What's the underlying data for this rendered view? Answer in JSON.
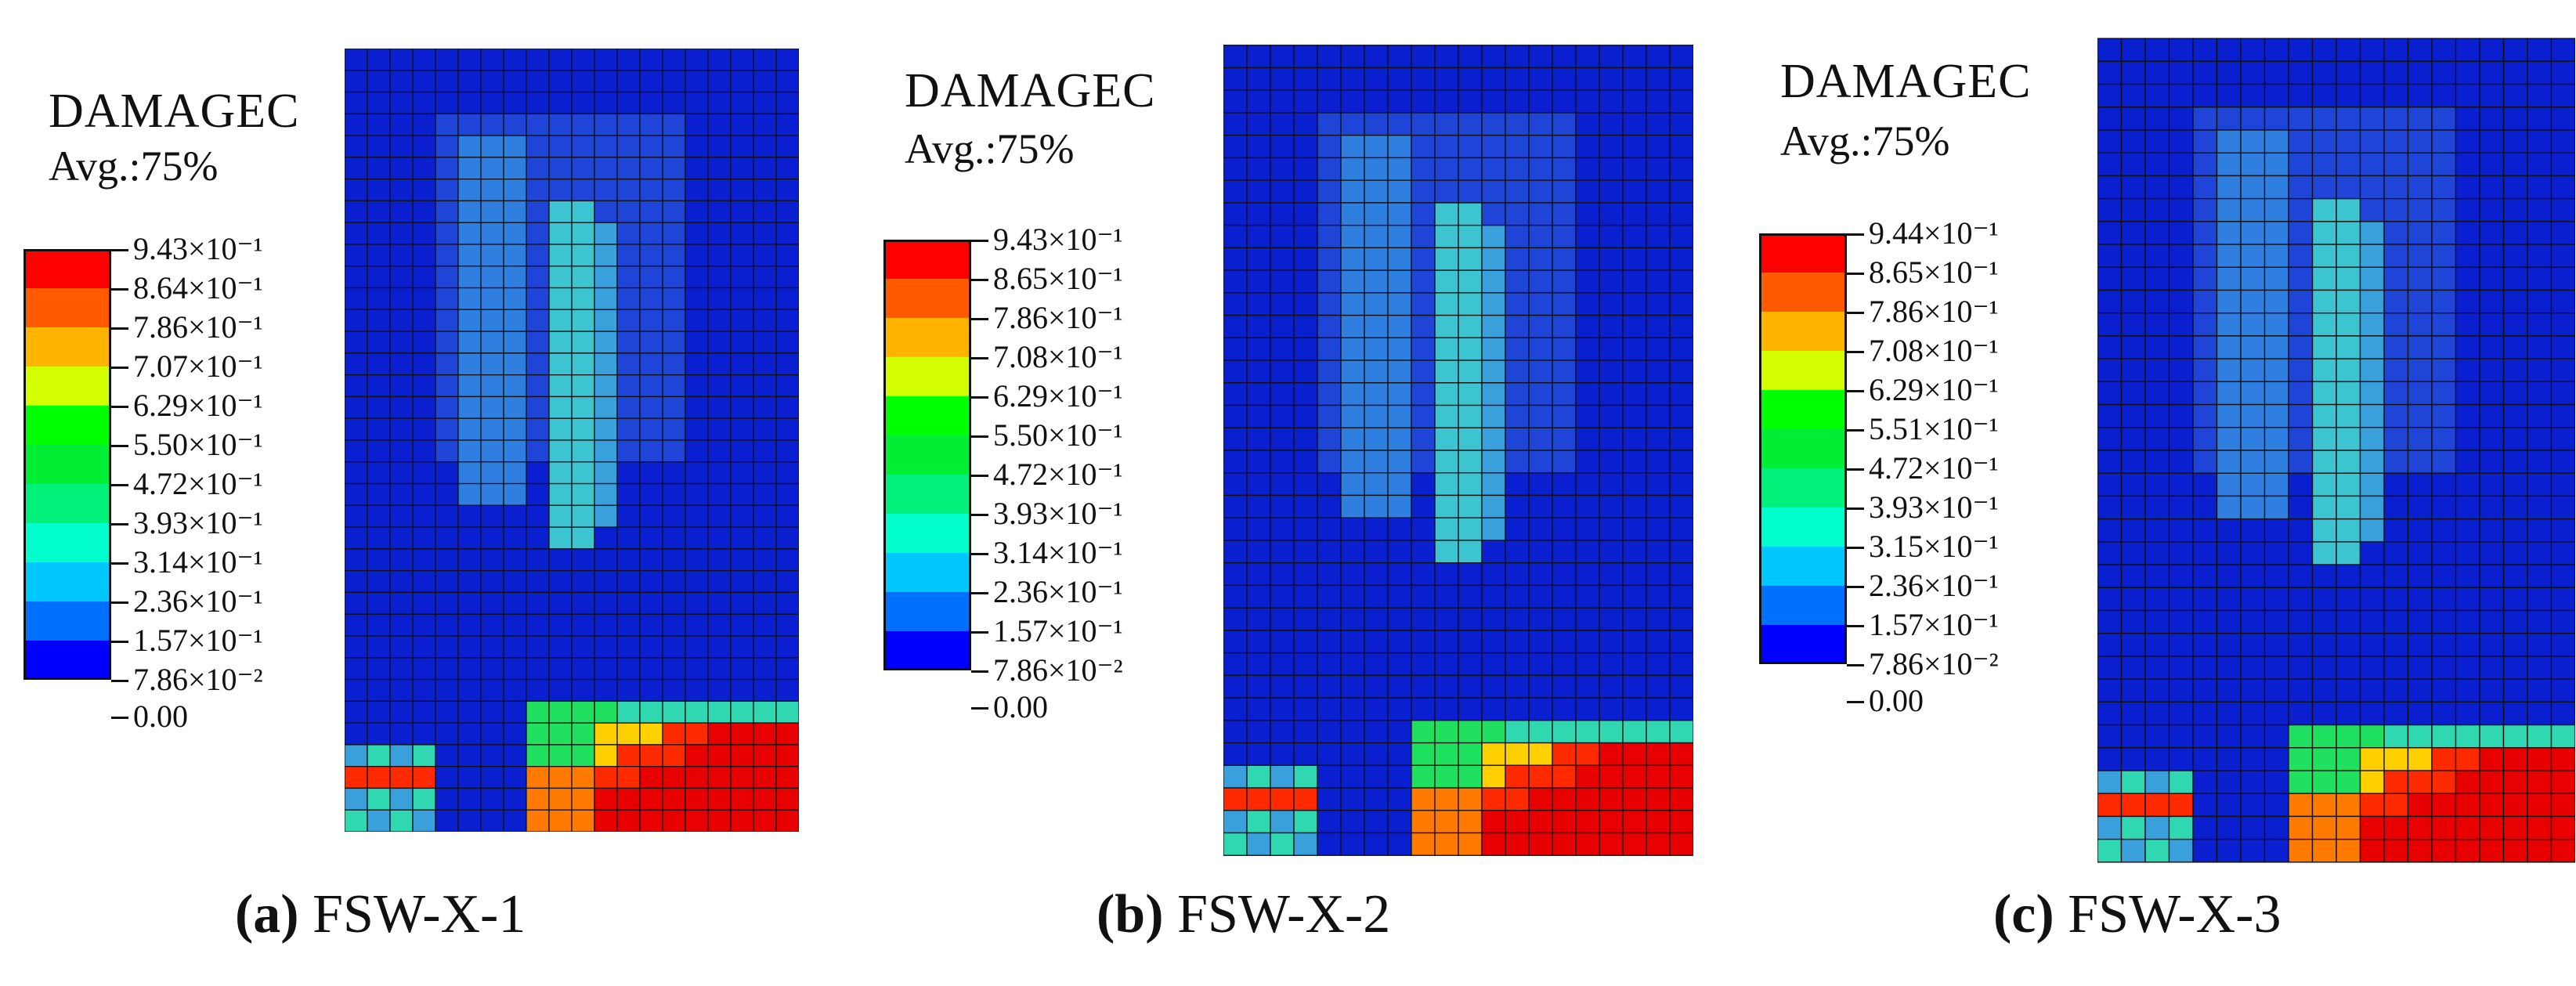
{
  "colorbar_colors": [
    "#ff0000",
    "#ff5a00",
    "#ffb400",
    "#d4ff00",
    "#00ff00",
    "#00ee33",
    "#00f27a",
    "#00ffcc",
    "#00c8ff",
    "#0070ff",
    "#0000ff"
  ],
  "panels": [
    {
      "title": "DAMAGEC",
      "subtitle": "Avg.:75%",
      "legend_values": [
        "9.43×10⁻¹",
        "8.64×10⁻¹",
        "7.86×10⁻¹",
        "7.07×10⁻¹",
        "6.29×10⁻¹",
        "5.50×10⁻¹",
        "4.72×10⁻¹",
        "3.93×10⁻¹",
        "3.14×10⁻¹",
        "2.36×10⁻¹",
        "1.57×10⁻¹",
        "7.86×10⁻²",
        "0.00"
      ],
      "caption_letter": "(a)",
      "caption_name": "FSW-X-1"
    },
    {
      "title": "DAMAGEC",
      "subtitle": "Avg.:75%",
      "legend_values": [
        "9.43×10⁻¹",
        "8.65×10⁻¹",
        "7.86×10⁻¹",
        "7.08×10⁻¹",
        "6.29×10⁻¹",
        "5.50×10⁻¹",
        "4.72×10⁻¹",
        "3.93×10⁻¹",
        "3.14×10⁻¹",
        "2.36×10⁻¹",
        "1.57×10⁻¹",
        "7.86×10⁻²",
        "0.00"
      ],
      "caption_letter": "(b)",
      "caption_name": "FSW-X-2"
    },
    {
      "title": "DAMAGEC",
      "subtitle": "Avg.:75%",
      "legend_values": [
        "9.44×10⁻¹",
        "8.65×10⁻¹",
        "7.86×10⁻¹",
        "7.08×10⁻¹",
        "6.29×10⁻¹",
        "5.51×10⁻¹",
        "4.72×10⁻¹",
        "3.93×10⁻¹",
        "3.15×10⁻¹",
        "2.36×10⁻¹",
        "1.57×10⁻¹",
        "7.86×10⁻²",
        "0.00"
      ],
      "caption_letter": "(c)",
      "caption_name": "FSW-X-3"
    }
  ]
}
